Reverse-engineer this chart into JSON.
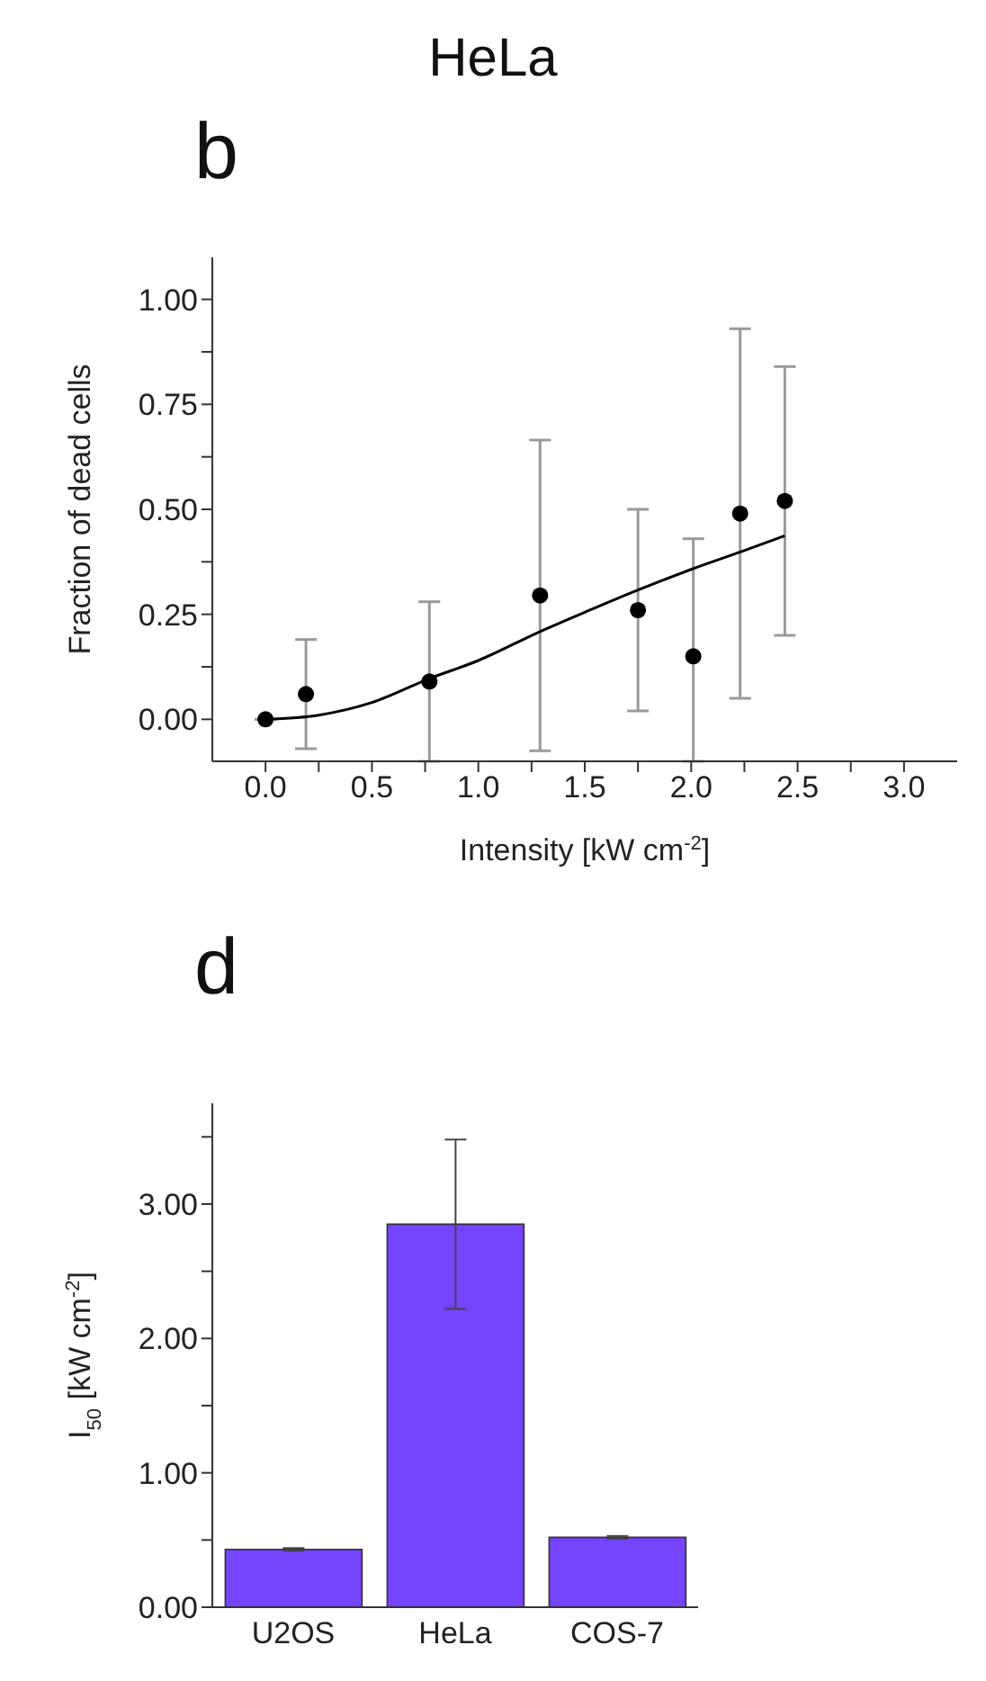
{
  "chart_data": [
    {
      "type": "scatter",
      "title": "HeLa",
      "annotations": [
        "b"
      ],
      "xlabel": "Intensity [kW cm$^{-2}$]",
      "ylabel": "Fraction of dead cells",
      "xlim": [
        -0.25,
        3.25
      ],
      "ylim": [
        -0.1,
        1.1
      ],
      "xticks": [
        {
          "value": 0,
          "label": "0.0"
        },
        {
          "value": 0.25,
          "label": null
        },
        {
          "value": 0.5,
          "label": "0.5"
        },
        {
          "value": 0.75,
          "label": null
        },
        {
          "value": 1,
          "label": "1.0"
        },
        {
          "value": 1.25,
          "label": null
        },
        {
          "value": 1.5,
          "label": "1.5"
        },
        {
          "value": 1.75,
          "label": null
        },
        {
          "value": 2,
          "label": "2.0"
        },
        {
          "value": 2.25,
          "label": null
        },
        {
          "value": 2.5,
          "label": "2.5"
        },
        {
          "value": 2.75,
          "label": null
        },
        {
          "value": 3,
          "label": "3.0"
        }
      ],
      "yticks": [
        {
          "value": 0,
          "label": "0.00"
        },
        {
          "value": 0.125,
          "label": null
        },
        {
          "value": 0.25,
          "label": "0.25"
        },
        {
          "value": 0.375,
          "label": null
        },
        {
          "value": 0.5,
          "label": "0.50"
        },
        {
          "value": 0.625,
          "label": null
        },
        {
          "value": 0.75,
          "label": "0.75"
        },
        {
          "value": 0.875,
          "label": null
        },
        {
          "value": 1,
          "label": "1.00"
        }
      ],
      "series": [
        {
          "type": "scatter",
          "marker": "circle",
          "color": "#000000",
          "x": [
            0,
            0.19,
            0.77,
            1.29,
            1.75,
            2.01,
            2.23,
            2.44
          ],
          "values": [
            0,
            0.06,
            0.09,
            0.295,
            0.26,
            0.15,
            0.49,
            0.52
          ],
          "errors": [
            null,
            0.13,
            0.19,
            0.37,
            0.24,
            [
              -0.1,
              0.43
            ],
            0.44,
            0.32
          ]
        },
        {
          "type": "line",
          "marker": "none",
          "color": "#000000",
          "x": [
            0,
            0.25,
            0.5,
            0.77,
            1,
            1.29,
            1.5,
            1.75,
            2,
            2.24,
            2.44
          ],
          "values": [
            0,
            0.01,
            0.04,
            0.097,
            0.14,
            0.209,
            0.255,
            0.308,
            0.357,
            0.4,
            0.437
          ]
        }
      ]
    },
    {
      "type": "bar",
      "annotations": [
        "d"
      ],
      "ylabel": "I$_{50}$ [kW cm$^{-2}$]",
      "categories": [
        "U2OS",
        "HeLa",
        "COS-7"
      ],
      "values": [
        0.43,
        2.85,
        0.52
      ],
      "errors": [
        0.01,
        0.63,
        0.01
      ],
      "color": "#7444ff",
      "ylim": [
        0,
        3.75
      ],
      "yticks": [
        {
          "value": 0,
          "label": "0.00"
        },
        {
          "value": 0.5,
          "label": null
        },
        {
          "value": 1,
          "label": "1.00"
        },
        {
          "value": 1.5,
          "label": null
        },
        {
          "value": 2,
          "label": "2.00"
        },
        {
          "value": 2.5,
          "label": null
        },
        {
          "value": 3,
          "label": "3.00"
        },
        {
          "value": 3.5,
          "label": null
        }
      ]
    }
  ]
}
